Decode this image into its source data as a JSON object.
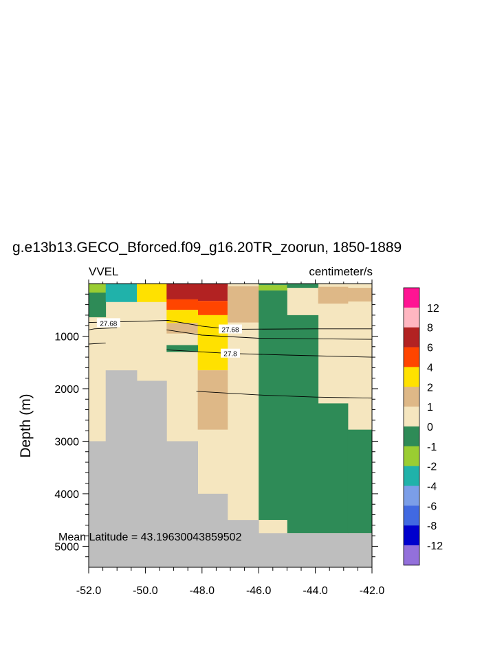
{
  "chart_data": {
    "type": "heatmap",
    "title": "g.e13b13.GECO_Bforced.f09_g16.20TR_zoorun, 1850-1889",
    "left_subtitle": "VVEL",
    "right_subtitle": "centimeter/s",
    "xlabel": "",
    "ylabel": "Depth (m)",
    "xlim": [
      -52.0,
      -42.0
    ],
    "ylim": [
      0,
      5400
    ],
    "y_inverted": true,
    "x_ticks": [
      "-52.0",
      "-50.0",
      "-48.0",
      "-46.0",
      "-44.0",
      "-42.0"
    ],
    "y_ticks": [
      "1000",
      "2000",
      "3000",
      "4000",
      "5000"
    ],
    "annotation": "Mean Latitude = 43.19630043859502",
    "colorbar": {
      "labels": [
        "12",
        "8",
        "6",
        "4",
        "2",
        "1",
        "0",
        "-1",
        "-2",
        "-4",
        "-6",
        "-8",
        "-12"
      ],
      "colors": [
        "#ff1493",
        "#ffb6c1",
        "#b22222",
        "#ff4500",
        "#ffe100",
        "#deb887",
        "#f5e6bf",
        "#2e8b57",
        "#9acd32",
        "#20b2aa",
        "#7b9ee8",
        "#4169e1",
        "#0000cd",
        "#9370db"
      ]
    },
    "missing_color": "#bebebe",
    "default_color": "#f5e6bf",
    "cells": [
      {
        "x": [
          -52.0,
          -51.4
        ],
        "z": [
          0,
          170
        ],
        "c": "#9acd32"
      },
      {
        "x": [
          -52.0,
          -51.4
        ],
        "z": [
          170,
          640
        ],
        "c": "#2e8b57"
      },
      {
        "x": [
          -51.4,
          -50.3
        ],
        "z": [
          0,
          350
        ],
        "c": "#20b2aa"
      },
      {
        "x": [
          -50.3,
          -49.25
        ],
        "z": [
          0,
          350
        ],
        "c": "#ffe100"
      },
      {
        "x": [
          -49.25,
          -48.15
        ],
        "z": [
          0,
          300
        ],
        "c": "#b22222"
      },
      {
        "x": [
          -48.15,
          -47.1
        ],
        "z": [
          0,
          330
        ],
        "c": "#b22222"
      },
      {
        "x": [
          -49.25,
          -48.15
        ],
        "z": [
          300,
          500
        ],
        "c": "#ff4500"
      },
      {
        "x": [
          -48.15,
          -47.1
        ],
        "z": [
          330,
          600
        ],
        "c": "#ff4500"
      },
      {
        "x": [
          -49.25,
          -48.15
        ],
        "z": [
          500,
          750
        ],
        "c": "#ffe100"
      },
      {
        "x": [
          -49.25,
          -48.15
        ],
        "z": [
          750,
          950
        ],
        "c": "#deb887"
      },
      {
        "x": [
          -48.15,
          -47.1
        ],
        "z": [
          600,
          1650
        ],
        "c": "#ffe100"
      },
      {
        "x": [
          -49.25,
          -48.15
        ],
        "z": [
          1170,
          1300
        ],
        "c": "#2e8b57"
      },
      {
        "x": [
          -47.1,
          -46.0
        ],
        "z": [
          50,
          740
        ],
        "c": "#deb887"
      },
      {
        "x": [
          -48.15,
          -47.1
        ],
        "z": [
          1650,
          2780
        ],
        "c": "#deb887"
      },
      {
        "x": [
          -46.0,
          -45.0
        ],
        "z": [
          0,
          30
        ],
        "c": "#2e8b57"
      },
      {
        "x": [
          -46.0,
          -45.0
        ],
        "z": [
          30,
          130
        ],
        "c": "#9acd32"
      },
      {
        "x": [
          -46.0,
          -45.0
        ],
        "z": [
          130,
          4500
        ],
        "c": "#2e8b57"
      },
      {
        "x": [
          -45.0,
          -43.9
        ],
        "z": [
          0,
          80
        ],
        "c": "#2e8b57"
      },
      {
        "x": [
          -43.9,
          -42.85
        ],
        "z": [
          60,
          380
        ],
        "c": "#deb887"
      },
      {
        "x": [
          -42.85,
          -42.0
        ],
        "z": [
          80,
          340
        ],
        "c": "#deb887"
      },
      {
        "x": [
          -45.0,
          -43.9
        ],
        "z": [
          600,
          4750
        ],
        "c": "#2e8b57"
      },
      {
        "x": [
          -43.9,
          -42.85
        ],
        "z": [
          2280,
          4750
        ],
        "c": "#2e8b57"
      },
      {
        "x": [
          -42.85,
          -42.0
        ],
        "z": [
          2780,
          4750
        ],
        "c": "#2e8b57"
      },
      {
        "x": [
          -46.0,
          -45.0
        ],
        "z": [
          4500,
          4750
        ],
        "c": "#f5e6bf"
      }
    ],
    "bathymetry": [
      {
        "x": [
          -52.0,
          -51.4
        ],
        "top": 3000
      },
      {
        "x": [
          -51.4,
          -50.3
        ],
        "top": 1650
      },
      {
        "x": [
          -50.3,
          -49.25
        ],
        "top": 1850
      },
      {
        "x": [
          -49.25,
          -48.15
        ],
        "top": 3000
      },
      {
        "x": [
          -48.15,
          -47.1
        ],
        "top": 4000
      },
      {
        "x": [
          -47.1,
          -46.0
        ],
        "top": 4500
      },
      {
        "x": [
          -46.0,
          -42.0
        ],
        "top": 4750
      }
    ],
    "contours": [
      {
        "points": [
          [
            -52.0,
            740
          ],
          [
            -50.4,
            720
          ],
          [
            -49.2,
            700
          ],
          [
            -48.0,
            810
          ],
          [
            -47.0,
            870
          ],
          [
            -44.0,
            860
          ],
          [
            -42.0,
            860
          ]
        ],
        "label": "27.68",
        "label_at": [
          -47.0,
          870
        ]
      },
      {
        "points": [
          [
            -52.0,
            880
          ],
          [
            -51.8,
            860
          ],
          [
            -51.0,
            840
          ]
        ],
        "label": "27.68",
        "label_at": [
          -51.3,
          750
        ]
      },
      {
        "points": [
          [
            -49.25,
            880
          ],
          [
            -48.0,
            980
          ],
          [
            -46.0,
            1040
          ],
          [
            -44.0,
            1050
          ],
          [
            -42.0,
            1060
          ]
        ],
        "label": "",
        "label_at": null
      },
      {
        "points": [
          [
            -52.0,
            1150
          ],
          [
            -51.4,
            1130
          ]
        ],
        "label": "",
        "label_at": null
      },
      {
        "points": [
          [
            -49.25,
            1260
          ],
          [
            -48.0,
            1300
          ],
          [
            -47.0,
            1330
          ],
          [
            -45.0,
            1360
          ],
          [
            -42.0,
            1400
          ]
        ],
        "label": "27.8",
        "label_at": [
          -47.0,
          1330
        ]
      },
      {
        "points": [
          [
            -48.2,
            2050
          ],
          [
            -46.0,
            2120
          ],
          [
            -44.0,
            2160
          ],
          [
            -42.0,
            2180
          ]
        ],
        "label": "",
        "label_at": null
      }
    ]
  }
}
